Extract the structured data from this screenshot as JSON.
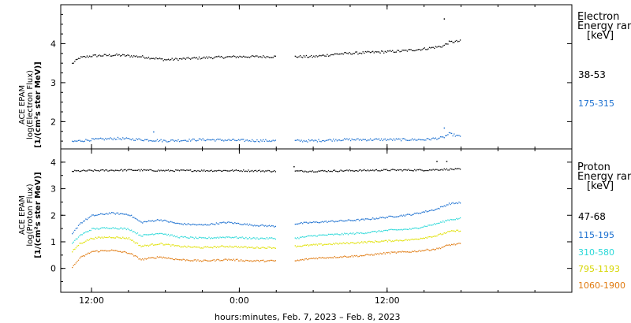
{
  "colors": {
    "black": "#000000",
    "blue": "#1a6fd0",
    "cyan": "#2ad8d8",
    "yellow": "#e0e000",
    "orange": "#e07a10"
  },
  "chart_data": [
    {
      "type": "scatter",
      "instrument": "ACE EPAM",
      "ylabel_line1": "ACE EPAM",
      "ylabel_line2": "log(Electron Flux)",
      "ylabel_line3": "[1/(cm²s ster MeV)]",
      "ylim": [
        1.3,
        5.0
      ],
      "yticks": [
        "2",
        "3",
        "4"
      ],
      "legend_title_line1": "Electron",
      "legend_title_line2": "Energy range",
      "legend_unit": "[keV]",
      "series": [
        {
          "name": "38-53",
          "color": "#000000",
          "segments": [
            {
              "x": [
                -1.6,
                -1.0,
                0.0,
                2.0,
                4.0,
                6.0,
                9.0,
                12.0,
                15.0
              ],
              "y": [
                3.5,
                3.65,
                3.7,
                3.72,
                3.68,
                3.6,
                3.65,
                3.68,
                3.68
              ]
            },
            {
              "x": [
                16.5,
                18.0,
                20.0,
                22.0,
                25.0,
                27.0,
                28.5,
                29.0,
                30.0
              ],
              "y": [
                3.68,
                3.68,
                3.75,
                3.78,
                3.82,
                3.88,
                3.95,
                4.05,
                4.08
              ]
            }
          ],
          "outliers": [
            {
              "x": 28.6,
              "y": 4.65
            }
          ]
        },
        {
          "name": "175-315",
          "color": "#1a6fd0",
          "segments": [
            {
              "x": [
                -1.6,
                0.0,
                2.0,
                4.0,
                6.0,
                9.0,
                12.0,
                15.0
              ],
              "y": [
                1.5,
                1.55,
                1.58,
                1.55,
                1.52,
                1.55,
                1.53,
                1.52
              ]
            },
            {
              "x": [
                16.5,
                18.0,
                20.0,
                22.0,
                25.0,
                27.0,
                28.5,
                29.0,
                30.0
              ],
              "y": [
                1.52,
                1.52,
                1.55,
                1.55,
                1.55,
                1.55,
                1.6,
                1.7,
                1.62
              ]
            }
          ],
          "outliers": [
            {
              "x": 28.6,
              "y": 1.85
            },
            {
              "x": 5.0,
              "y": 1.75
            }
          ]
        }
      ]
    },
    {
      "type": "scatter",
      "instrument": "ACE EPAM",
      "ylabel_line1": "ACE EPAM",
      "ylabel_line2": "log(Proton Flux)",
      "ylabel_line3": "[1/(cm²s ster MeV)]",
      "ylim": [
        -0.9,
        4.5
      ],
      "yticks": [
        "0",
        "1",
        "2",
        "3",
        "4"
      ],
      "legend_title_line1": "Proton",
      "legend_title_line2": "Energy range",
      "legend_unit": "[keV]",
      "series": [
        {
          "name": "47-68",
          "color": "#000000",
          "segments": [
            {
              "x": [
                -1.6,
                0.0,
                3.0,
                6.0,
                9.0,
                12.0,
                15.0
              ],
              "y": [
                3.68,
                3.7,
                3.72,
                3.7,
                3.7,
                3.7,
                3.68
              ]
            },
            {
              "x": [
                16.5,
                18.0,
                21.0,
                24.0,
                27.0,
                29.0,
                30.0
              ],
              "y": [
                3.68,
                3.68,
                3.7,
                3.72,
                3.72,
                3.75,
                3.75
              ]
            }
          ],
          "outliers": [
            {
              "x": 28.0,
              "y": 4.05
            },
            {
              "x": 28.8,
              "y": 4.05
            },
            {
              "x": 16.4,
              "y": 3.85
            }
          ]
        },
        {
          "name": "115-195",
          "color": "#1a6fd0",
          "segments": [
            {
              "x": [
                -1.6,
                -1.0,
                0.0,
                1.5,
                3.0,
                4.0,
                5.5,
                7.0,
                9.0,
                11.0,
                13.0,
                15.0
              ],
              "y": [
                1.3,
                1.7,
                2.0,
                2.1,
                2.05,
                1.75,
                1.85,
                1.7,
                1.65,
                1.75,
                1.65,
                1.6
              ]
            },
            {
              "x": [
                16.5,
                18.0,
                20.0,
                22.0,
                24.0,
                26.0,
                28.0,
                29.0,
                30.0
              ],
              "y": [
                1.7,
                1.75,
                1.8,
                1.85,
                1.95,
                2.05,
                2.25,
                2.45,
                2.5
              ]
            }
          ],
          "outliers": []
        },
        {
          "name": "310-580",
          "color": "#2ad8d8",
          "segments": [
            {
              "x": [
                -1.6,
                -1.0,
                0.0,
                1.5,
                3.0,
                4.0,
                5.5,
                7.0,
                9.0,
                11.0,
                13.0,
                15.0
              ],
              "y": [
                0.95,
                1.25,
                1.5,
                1.55,
                1.5,
                1.25,
                1.35,
                1.2,
                1.15,
                1.2,
                1.15,
                1.15
              ]
            },
            {
              "x": [
                16.5,
                18.0,
                20.0,
                22.0,
                24.0,
                26.0,
                28.0,
                29.0,
                30.0
              ],
              "y": [
                1.15,
                1.25,
                1.3,
                1.35,
                1.45,
                1.5,
                1.7,
                1.85,
                1.9
              ]
            }
          ],
          "outliers": []
        },
        {
          "name": "795-1193",
          "color": "#e0e000",
          "segments": [
            {
              "x": [
                -1.6,
                -1.0,
                0.0,
                1.5,
                3.0,
                4.0,
                5.5,
                7.0,
                9.0,
                11.0,
                13.0,
                15.0
              ],
              "y": [
                0.65,
                0.95,
                1.15,
                1.2,
                1.15,
                0.85,
                0.95,
                0.85,
                0.8,
                0.85,
                0.8,
                0.8
              ]
            },
            {
              "x": [
                16.5,
                18.0,
                20.0,
                22.0,
                24.0,
                26.0,
                28.0,
                29.0,
                30.0
              ],
              "y": [
                0.85,
                0.9,
                0.95,
                1.0,
                1.05,
                1.1,
                1.25,
                1.4,
                1.45
              ]
            }
          ],
          "outliers": []
        },
        {
          "name": "1060-1900",
          "color": "#e07a10",
          "segments": [
            {
              "x": [
                -1.6,
                -1.0,
                0.0,
                1.5,
                3.0,
                4.0,
                5.5,
                7.0,
                9.0,
                11.0,
                13.0,
                15.0
              ],
              "y": [
                0.05,
                0.4,
                0.65,
                0.7,
                0.6,
                0.35,
                0.45,
                0.35,
                0.3,
                0.35,
                0.3,
                0.3
              ]
            },
            {
              "x": [
                16.5,
                18.0,
                20.0,
                22.0,
                24.0,
                26.0,
                28.0,
                29.0,
                30.0
              ],
              "y": [
                0.3,
                0.4,
                0.45,
                0.5,
                0.6,
                0.65,
                0.75,
                0.9,
                0.95
              ]
            }
          ],
          "outliers": []
        }
      ]
    }
  ],
  "xaxis": {
    "xlim_hours": [
      -2.5,
      39.0
    ],
    "ticks": [
      {
        "hour": 0,
        "label": "12:00"
      },
      {
        "hour": 12,
        "label": "0:00"
      },
      {
        "hour": 24,
        "label": "12:00"
      }
    ],
    "xlabel": "hours:minutes, Feb.  7, 2023 – Feb.  8, 2023"
  }
}
